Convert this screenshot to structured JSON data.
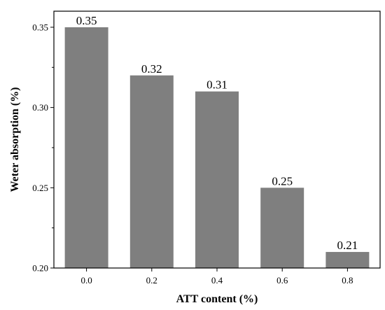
{
  "chart_data": {
    "type": "bar",
    "title": "",
    "xlabel": "ATT  content (%)",
    "ylabel": "Weter absorption (%)",
    "categories": [
      "0.0",
      "0.2",
      "0.4",
      "0.6",
      "0.8"
    ],
    "values": [
      0.35,
      0.32,
      0.31,
      0.25,
      0.21
    ],
    "data_labels": [
      "0.35",
      "0.32",
      "0.31",
      "0.25",
      "0.21"
    ],
    "ylim": [
      0.2,
      0.36
    ],
    "yticks": [
      "0.20",
      "0.25",
      "0.30",
      "0.35"
    ],
    "ytick_values": [
      0.2,
      0.25,
      0.3,
      0.35
    ],
    "grid": false,
    "legend": "none",
    "bar_color": "#7f7f7f",
    "axis_color": "#000000"
  }
}
